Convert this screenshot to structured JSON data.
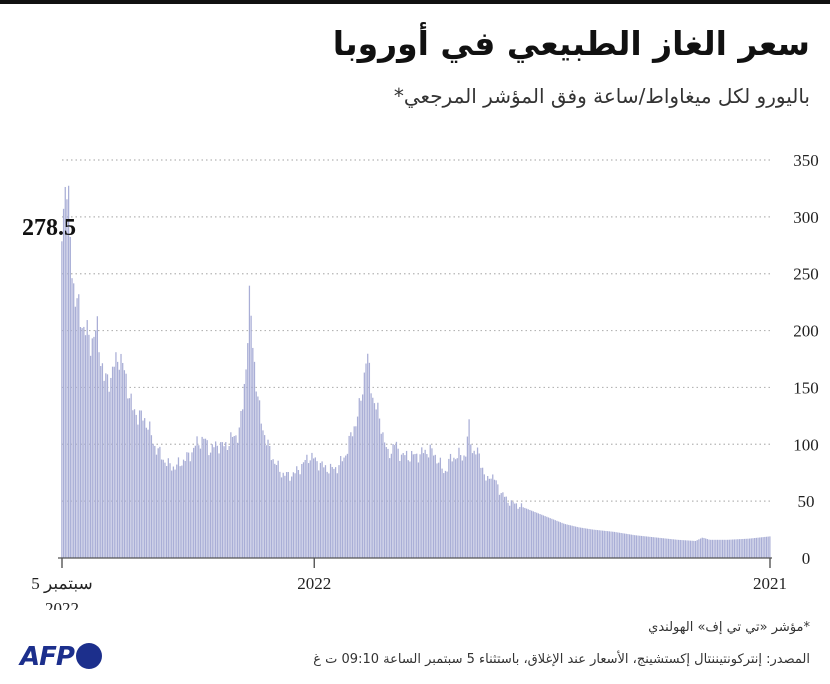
{
  "title": "سعر الغاز الطبيعي في أوروبا",
  "subtitle": "باليورو لكل ميغاواط/ساعة وفق المؤشر المرجعي*",
  "footnote": "*مؤشر «تي تي إف» الهولندي",
  "source": "المصدر: إنتركونتيننتال إكستشينج، الأسعار عند الإغلاق، باستثناء 5 سبتمبر الساعة 09:10 ت غ",
  "logo": {
    "text": "AFP"
  },
  "colors": {
    "bars": "#a9aed6",
    "grid": "#b5b5b5",
    "axis": "#555555",
    "logo": "#1c2f8c"
  },
  "chart_data": {
    "type": "bar",
    "title": "سعر الغاز الطبيعي في أوروبا",
    "ylabel": "باليورو لكل ميغاواط/ساعة",
    "ylim": [
      0,
      350
    ],
    "yticks": [
      "0",
      "50",
      "100",
      "150",
      "200",
      "250",
      "300",
      "350"
    ],
    "y_axis_side": "right",
    "x_direction": "right-to-left",
    "x_labels": [
      {
        "text": "2021",
        "pos": 0.0
      },
      {
        "text": "2022",
        "pos": 0.6437
      },
      {
        "text": "5 سبتمبر",
        "pos": 1.0
      },
      {
        "text": "2022",
        "pos": 1.0
      }
    ],
    "x": [
      "2021-01",
      "2021-02",
      "2021-03",
      "2021-04",
      "2021-05",
      "2021-06",
      "2021-07",
      "2021-08",
      "2021-09",
      "2021-10",
      "2021-11",
      "2021-12",
      "2022-01",
      "2022-02",
      "2022-03",
      "2022-04",
      "2022-05",
      "2022-06",
      "2022-07",
      "2022-08",
      "2022-09-05"
    ],
    "series_points": [
      [
        0.0,
        19
      ],
      [
        0.03,
        17
      ],
      [
        0.06,
        16
      ],
      [
        0.085,
        16
      ],
      [
        0.095,
        18
      ],
      [
        0.105,
        15
      ],
      [
        0.13,
        16
      ],
      [
        0.16,
        18
      ],
      [
        0.19,
        20
      ],
      [
        0.22,
        23
      ],
      [
        0.25,
        25
      ],
      [
        0.27,
        27
      ],
      [
        0.29,
        30
      ],
      [
        0.31,
        35
      ],
      [
        0.33,
        40
      ],
      [
        0.35,
        45
      ],
      [
        0.37,
        50
      ],
      [
        0.38,
        58
      ],
      [
        0.39,
        70
      ],
      [
        0.395,
        75
      ],
      [
        0.4,
        65
      ],
      [
        0.41,
        90
      ],
      [
        0.42,
        95
      ],
      [
        0.425,
        115
      ],
      [
        0.43,
        90
      ],
      [
        0.44,
        90
      ],
      [
        0.45,
        88
      ],
      [
        0.46,
        75
      ],
      [
        0.47,
        88
      ],
      [
        0.48,
        95
      ],
      [
        0.5,
        90
      ],
      [
        0.52,
        90
      ],
      [
        0.53,
        100
      ],
      [
        0.54,
        90
      ],
      [
        0.55,
        120
      ],
      [
        0.56,
        140
      ],
      [
        0.57,
        180
      ],
      [
        0.575,
        150
      ],
      [
        0.58,
        130
      ],
      [
        0.59,
        110
      ],
      [
        0.6,
        90
      ],
      [
        0.61,
        80
      ],
      [
        0.62,
        78
      ],
      [
        0.63,
        80
      ],
      [
        0.64,
        85
      ],
      [
        0.65,
        90
      ],
      [
        0.66,
        82
      ],
      [
        0.67,
        75
      ],
      [
        0.68,
        72
      ],
      [
        0.69,
        75
      ],
      [
        0.7,
        85
      ],
      [
        0.71,
        100
      ],
      [
        0.72,
        125
      ],
      [
        0.725,
        150
      ],
      [
        0.73,
        188
      ],
      [
        0.735,
        225
      ],
      [
        0.74,
        170
      ],
      [
        0.745,
        130
      ],
      [
        0.75,
        110
      ],
      [
        0.76,
        105
      ],
      [
        0.77,
        98
      ],
      [
        0.78,
        100
      ],
      [
        0.79,
        95
      ],
      [
        0.8,
        105
      ],
      [
        0.81,
        100
      ],
      [
        0.82,
        90
      ],
      [
        0.83,
        85
      ],
      [
        0.84,
        80
      ],
      [
        0.85,
        82
      ],
      [
        0.86,
        90
      ],
      [
        0.87,
        100
      ],
      [
        0.88,
        120
      ],
      [
        0.89,
        125
      ],
      [
        0.9,
        130
      ],
      [
        0.91,
        160
      ],
      [
        0.92,
        180
      ],
      [
        0.93,
        160
      ],
      [
        0.94,
        155
      ],
      [
        0.95,
        200
      ],
      [
        0.96,
        190
      ],
      [
        0.97,
        205
      ],
      [
        0.98,
        225
      ],
      [
        0.985,
        250
      ],
      [
        0.99,
        300
      ],
      [
        0.995,
        340
      ],
      [
        1.0,
        278.5
      ]
    ],
    "annotations": [
      {
        "text": "278.5",
        "value": 278.5,
        "at": "2022-09-05"
      }
    ]
  }
}
